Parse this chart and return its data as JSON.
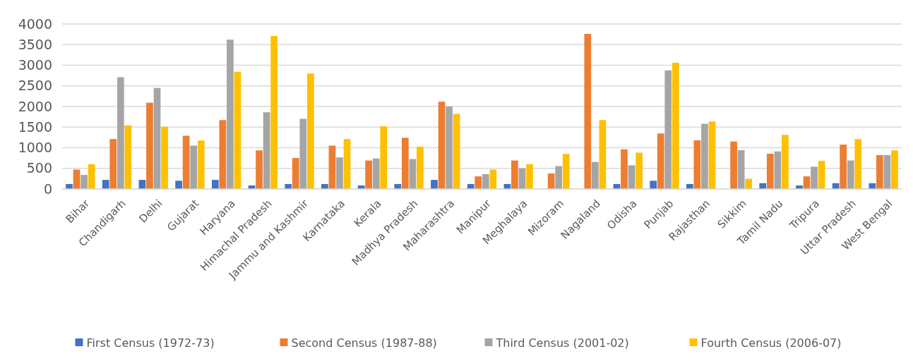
{
  "chart_data": {
    "type": "bar",
    "categories": [
      "Bihar",
      "Chandigarh",
      "Delhi",
      "Gujarat",
      "Haryana",
      "Himachal Pradesh",
      "Jammu and Kashmir",
      "Karnataka",
      "Kerala",
      "Madhya Pradesh",
      "Maharashtra",
      "Manipur",
      "Meghalaya",
      "Mizoram",
      "Nagaland",
      "Odisha",
      "Punjab",
      "Rajasthan",
      "Sikkim",
      "Tamil Nadu",
      "Tripura",
      "Uttar Pradesh",
      "West Bengal"
    ],
    "series": [
      {
        "name": "First Census (1972-73)",
        "color": "#4472c4",
        "values": [
          120,
          220,
          220,
          200,
          220,
          85,
          120,
          120,
          85,
          120,
          220,
          120,
          120,
          null,
          null,
          120,
          200,
          120,
          null,
          140,
          85,
          140,
          140
        ]
      },
      {
        "name": "Second Census (1987-88)",
        "color": "#ed7d31",
        "values": [
          470,
          1210,
          2090,
          1290,
          1670,
          935,
          750,
          1050,
          690,
          1240,
          2115,
          305,
          690,
          375,
          3760,
          960,
          1345,
          1180,
          1150,
          855,
          305,
          1075,
          820
        ]
      },
      {
        "name": "Third Census (2001-02)",
        "color": "#a5a5a5",
        "values": [
          340,
          2710,
          2450,
          1050,
          3620,
          1860,
          1700,
          765,
          740,
          725,
          2000,
          360,
          500,
          555,
          655,
          575,
          2875,
          1580,
          940,
          910,
          540,
          690,
          820
        ]
      },
      {
        "name": "Fourth Census (2006-07)",
        "color": "#ffc000",
        "values": [
          600,
          1540,
          1510,
          1175,
          2840,
          3710,
          2800,
          1210,
          1520,
          1025,
          1820,
          470,
          600,
          850,
          1670,
          880,
          3060,
          1635,
          245,
          1310,
          680,
          1210,
          935
        ]
      }
    ],
    "ylim": [
      0,
      4000
    ],
    "yticks": [
      0,
      500,
      1000,
      1500,
      2000,
      2500,
      3000,
      3500,
      4000
    ],
    "grid": "y",
    "legend": "bottom"
  }
}
